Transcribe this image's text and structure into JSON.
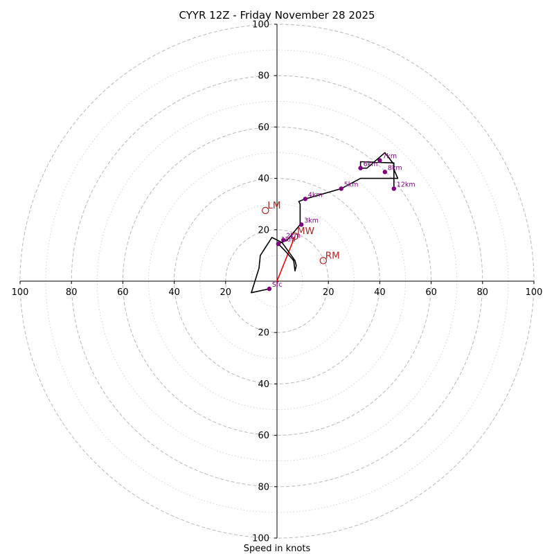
{
  "chart_data": {
    "type": "hodograph",
    "title": "CYYR 12Z - Friday November 28 2025",
    "xlabel": "Speed in knots",
    "units": "knots",
    "range": [
      -100,
      100
    ],
    "ring_major": [
      20,
      40,
      60,
      80,
      100
    ],
    "ring_minor": [
      10,
      30,
      50,
      70,
      90
    ],
    "x_ticks": [
      {
        "value": -100,
        "label": "100"
      },
      {
        "value": -80,
        "label": "80"
      },
      {
        "value": -60,
        "label": "60"
      },
      {
        "value": -40,
        "label": "40"
      },
      {
        "value": -20,
        "label": "20"
      },
      {
        "value": 20,
        "label": "20"
      },
      {
        "value": 40,
        "label": "40"
      },
      {
        "value": 60,
        "label": "60"
      },
      {
        "value": 80,
        "label": "80"
      },
      {
        "value": 100,
        "label": "100"
      }
    ],
    "y_ticks": [
      {
        "value": 100,
        "label": "100"
      },
      {
        "value": 80,
        "label": "80"
      },
      {
        "value": 60,
        "label": "60"
      },
      {
        "value": 40,
        "label": "40"
      },
      {
        "value": 20,
        "label": "20"
      },
      {
        "value": -20,
        "label": "20"
      },
      {
        "value": -40,
        "label": "40"
      },
      {
        "value": -60,
        "label": "60"
      },
      {
        "value": -80,
        "label": "80"
      },
      {
        "value": -100,
        "label": "100"
      }
    ],
    "trace": [
      [
        -3,
        -3
      ],
      [
        -10,
        -4.5
      ],
      [
        -7,
        5
      ],
      [
        -6.5,
        10
      ],
      [
        -2,
        17
      ],
      [
        2,
        15
      ],
      [
        7,
        8
      ],
      [
        7.5,
        6
      ],
      [
        7,
        4
      ],
      [
        6.5,
        8
      ],
      [
        3,
        12
      ],
      [
        0.5,
        14.5
      ],
      [
        4,
        16
      ],
      [
        9,
        22
      ],
      [
        9,
        30
      ],
      [
        8.5,
        31
      ],
      [
        11,
        32
      ],
      [
        25,
        36
      ],
      [
        32.5,
        40
      ],
      [
        47,
        40
      ],
      [
        45.5,
        43.5
      ],
      [
        45.5,
        45.5
      ],
      [
        42,
        50
      ],
      [
        35,
        44
      ],
      [
        32.5,
        44
      ],
      [
        32.5,
        46.5
      ],
      [
        45.5,
        46
      ],
      [
        45.5,
        40
      ],
      [
        45.5,
        36
      ]
    ],
    "height_markers": [
      {
        "label": "Sfc",
        "u": -3,
        "v": -3
      },
      {
        "label": "1km",
        "u": 0.5,
        "v": 14.5
      },
      {
        "label": "2km",
        "u": 2.5,
        "v": 16
      },
      {
        "label": "3km",
        "u": 9.5,
        "v": 22
      },
      {
        "label": "4km",
        "u": 11,
        "v": 32
      },
      {
        "label": "5km",
        "u": 25,
        "v": 36
      },
      {
        "label": "6km",
        "u": 32.5,
        "v": 44
      },
      {
        "label": "7km",
        "u": 40,
        "v": 47
      },
      {
        "label": "8km",
        "u": 42,
        "v": 42.5
      },
      {
        "label": "12km",
        "u": 45.5,
        "v": 36
      }
    ],
    "motion_markers": [
      {
        "label": "LM",
        "u": -4.5,
        "v": 27.5
      },
      {
        "label": "MW",
        "u": 7,
        "v": 17.5
      },
      {
        "label": "RM",
        "u": 18,
        "v": 8
      }
    ],
    "bunkers_vector": {
      "from": [
        0,
        0
      ],
      "to": [
        7,
        17.5
      ]
    },
    "colors": {
      "trace": "#000000",
      "height_marker": "#800080",
      "motion": "#b22222",
      "vector": "#ff0000",
      "ring_major": "#bfbfbf",
      "ring_minor": "#d3d3d3",
      "axis": "#000000"
    }
  }
}
